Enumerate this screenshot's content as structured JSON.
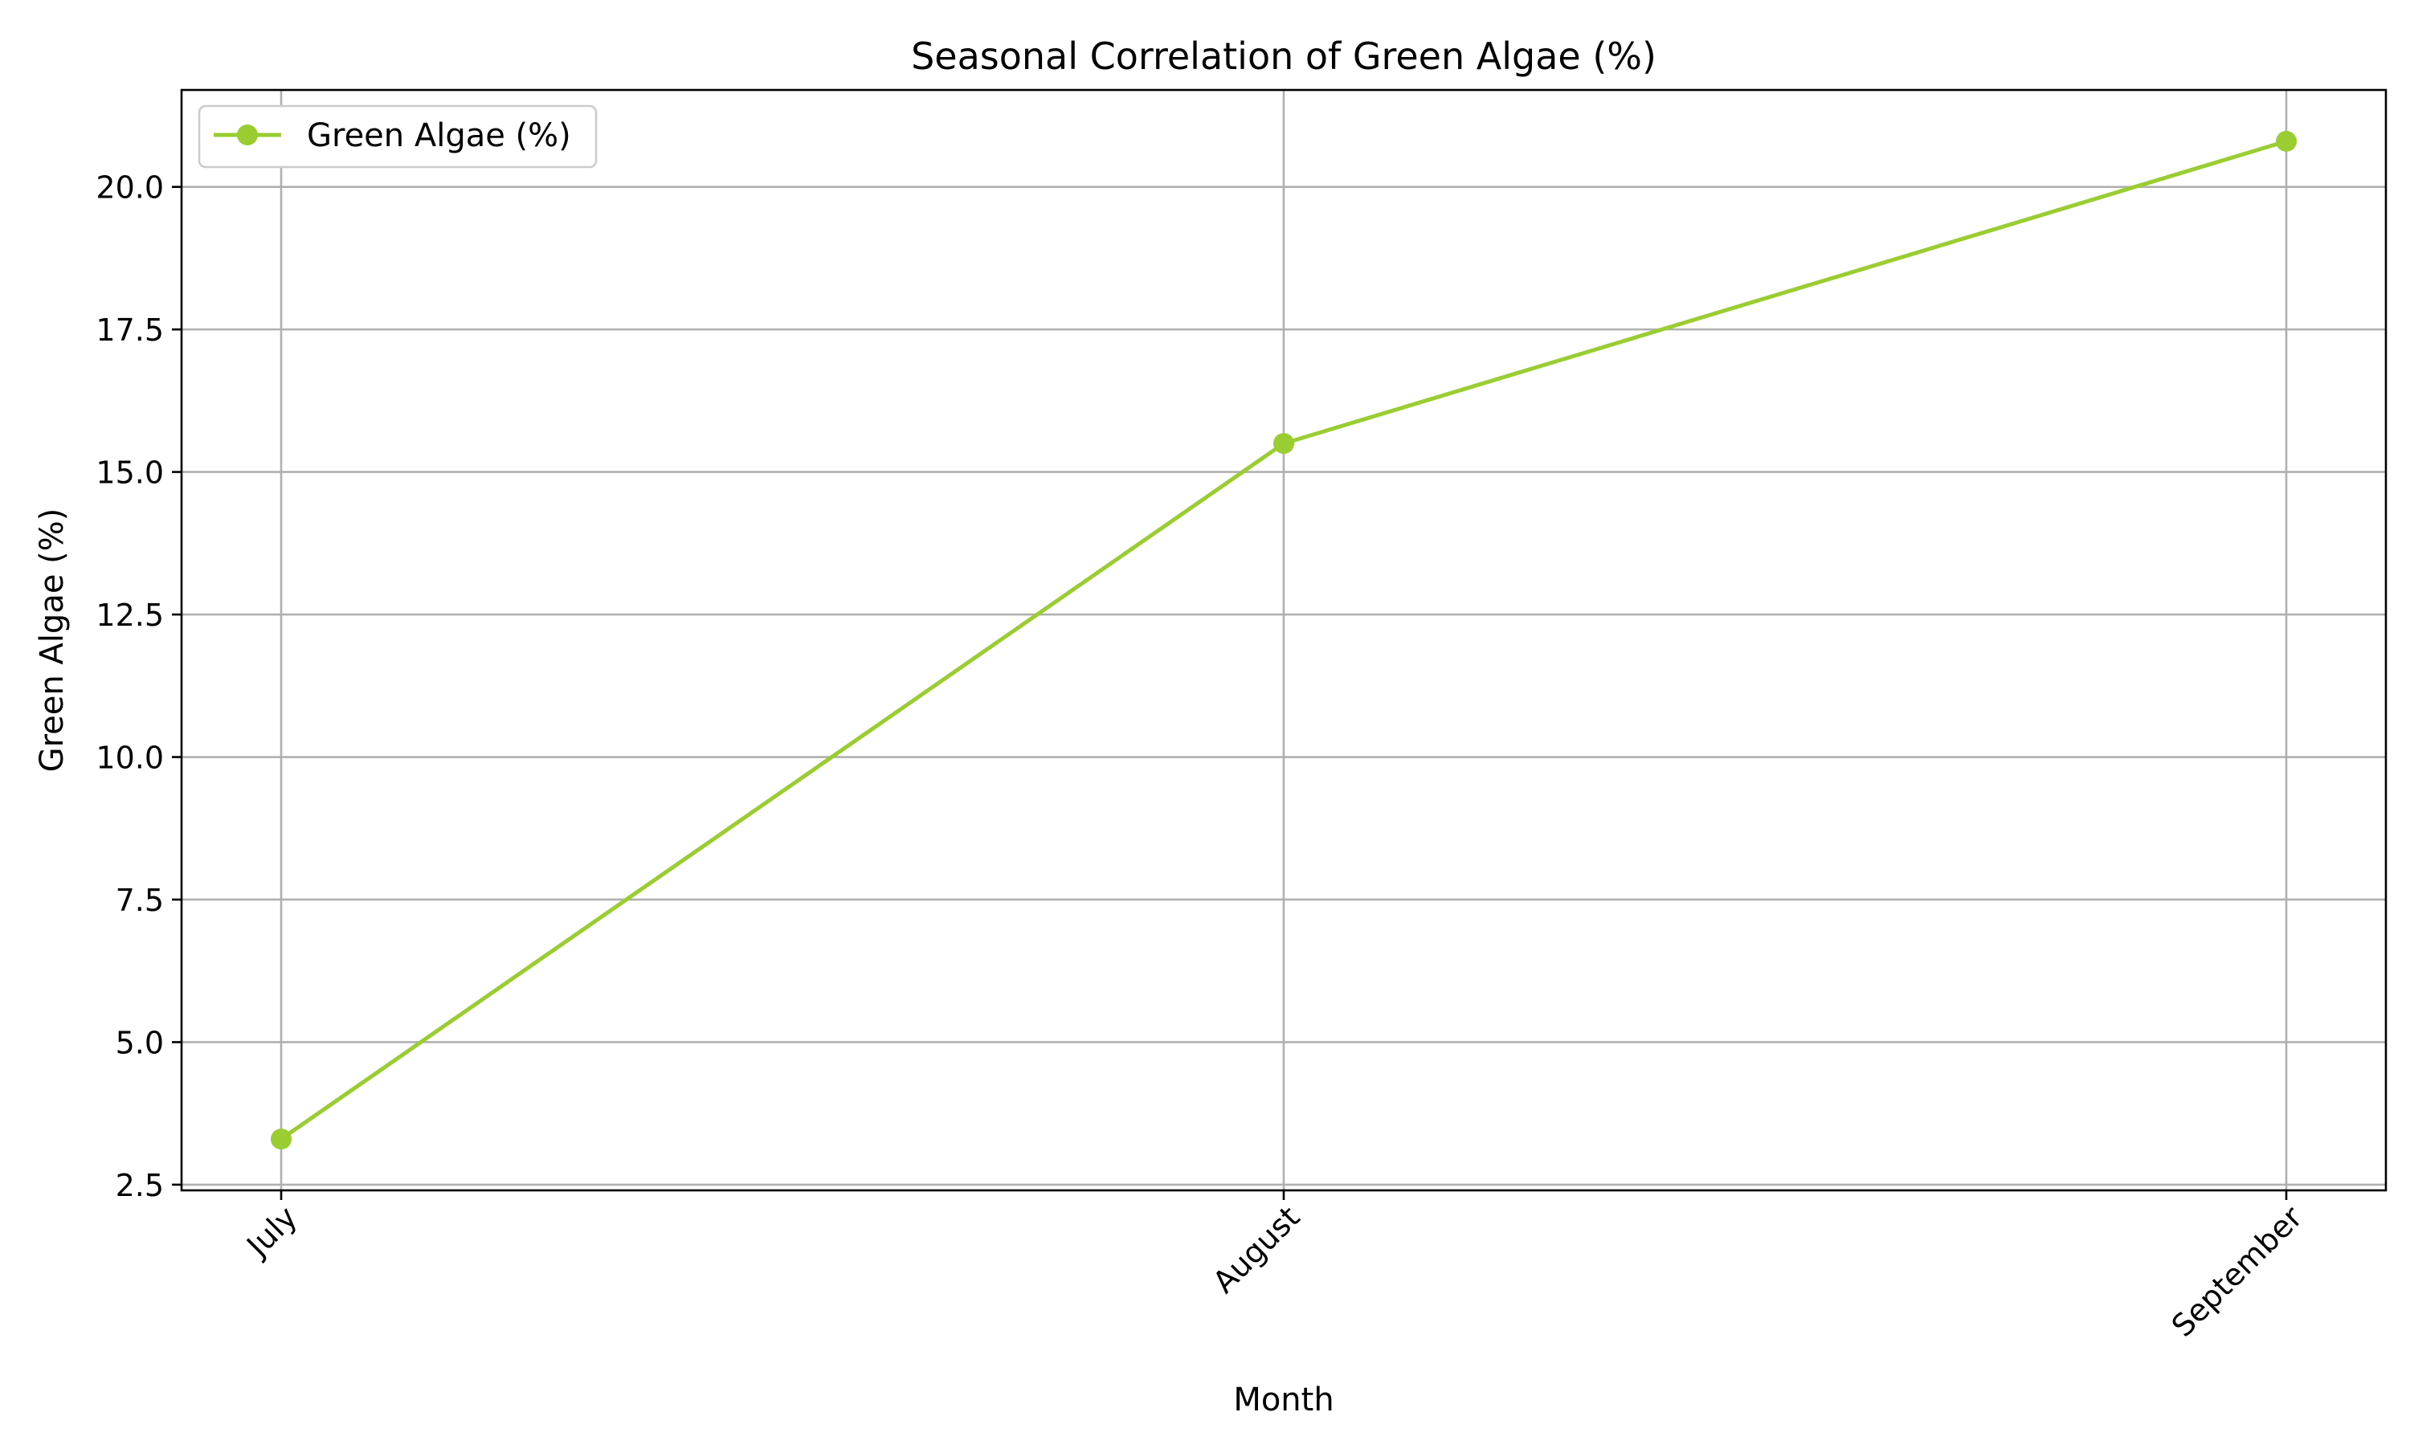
{
  "chart_data": {
    "type": "line",
    "title": "Seasonal Correlation of Green Algae (%)",
    "xlabel": "Month",
    "ylabel": "Green Algae (%)",
    "categories": [
      "July",
      "August",
      "September"
    ],
    "series": [
      {
        "name": "Green Algae (%)",
        "values": [
          3.3,
          15.5,
          20.8
        ],
        "color": "#9acd32",
        "marker": "circle"
      }
    ],
    "ylim": [
      2.4,
      21.7
    ],
    "yticks": [
      2.5,
      5.0,
      7.5,
      10.0,
      12.5,
      15.0,
      17.5,
      20.0
    ],
    "ytick_labels": [
      "2.5",
      "5.0",
      "7.5",
      "10.0",
      "12.5",
      "15.0",
      "17.5",
      "20.0"
    ],
    "xtick_rotation": 45,
    "grid": true,
    "legend": "top-left"
  }
}
